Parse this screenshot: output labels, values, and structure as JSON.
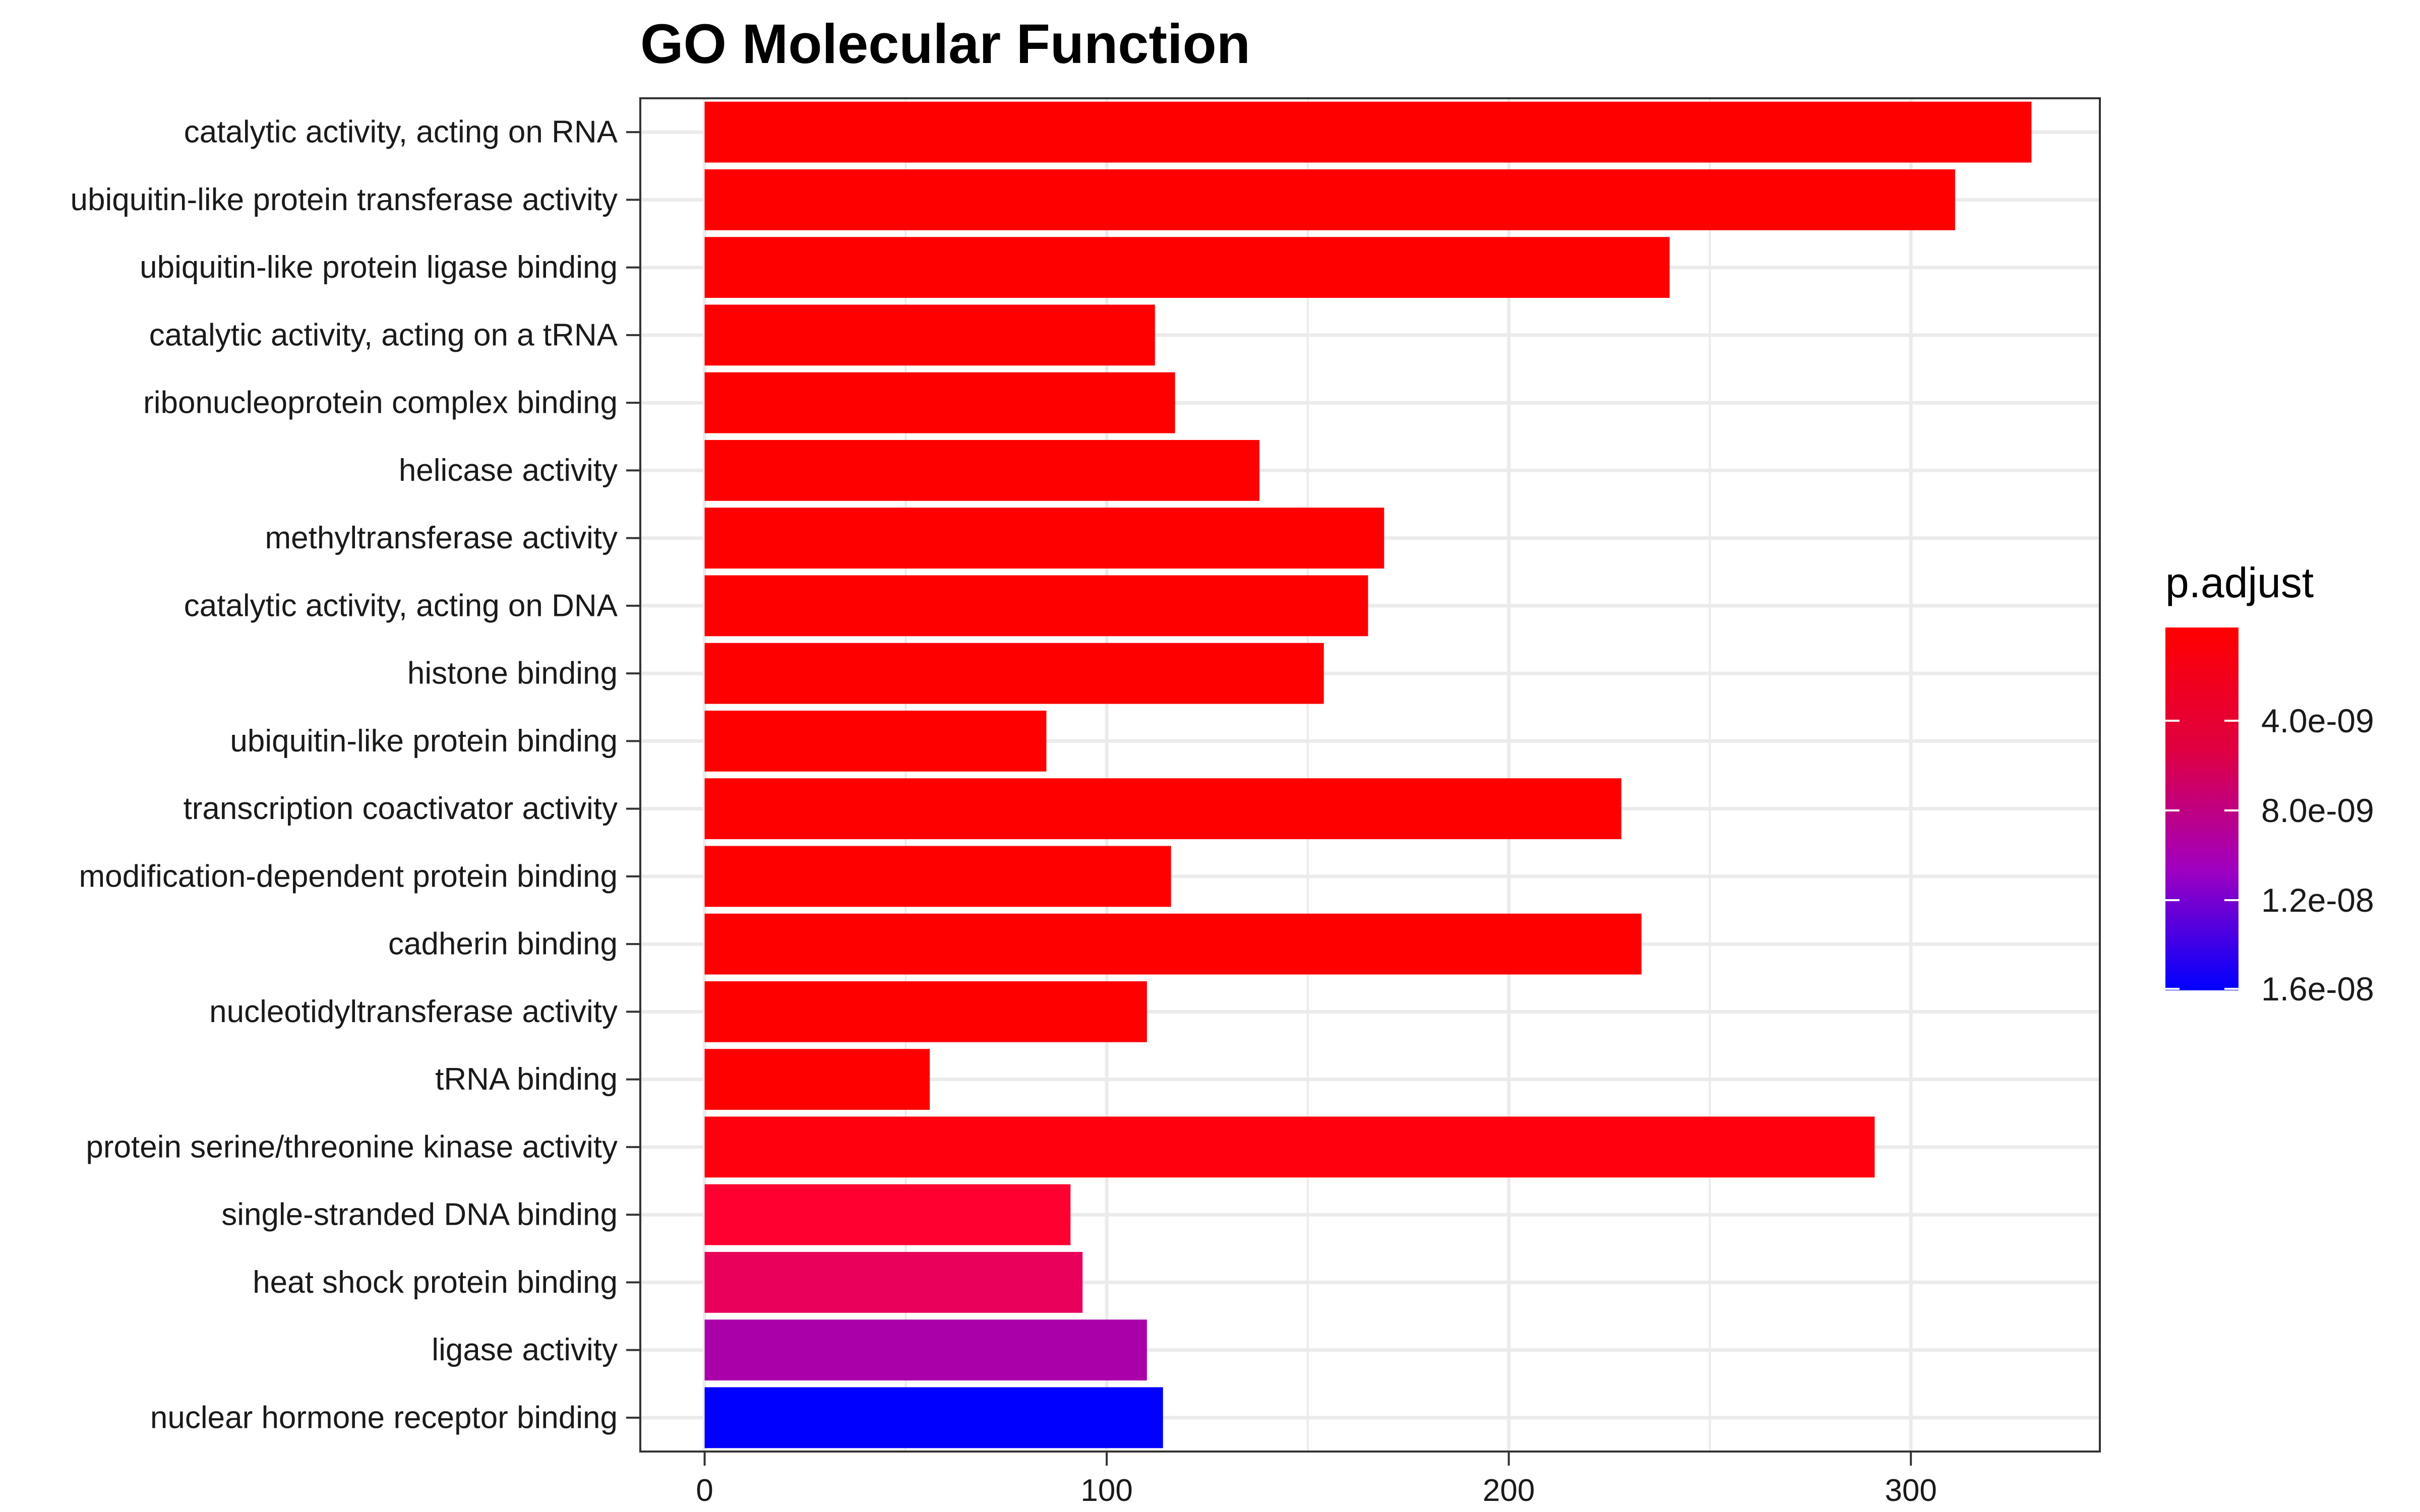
{
  "chart_data": {
    "type": "bar",
    "orientation": "horizontal",
    "title": "GO Molecular Function",
    "xlabel": "",
    "ylabel": "",
    "xlim": [
      -16,
      347
    ],
    "x_ticks": [
      0,
      100,
      200,
      300
    ],
    "grid": true,
    "categories": [
      "catalytic activity, acting on RNA",
      "ubiquitin-like protein transferase activity",
      "ubiquitin-like protein ligase binding",
      "catalytic activity, acting on a tRNA",
      "ribonucleoprotein complex binding",
      "helicase activity",
      "methyltransferase activity",
      "catalytic activity, acting on DNA",
      "histone binding",
      "ubiquitin-like protein binding",
      "transcription coactivator activity",
      "modification-dependent protein binding",
      "cadherin binding",
      "nucleotidyltransferase activity",
      "tRNA binding",
      "protein serine/threonine kinase activity",
      "single-stranded DNA binding",
      "heat shock protein binding",
      "ligase activity",
      "nuclear hormone receptor binding"
    ],
    "values": [
      330,
      311,
      240,
      112,
      117,
      138,
      169,
      165,
      154,
      85,
      228,
      116,
      233,
      110,
      56,
      291,
      91,
      94,
      110,
      114
    ],
    "bar_colors": [
      "#ff0000",
      "#ff0000",
      "#ff0000",
      "#ff0000",
      "#ff0000",
      "#ff0000",
      "#ff0000",
      "#ff0000",
      "#ff0000",
      "#ff0000",
      "#ff0000",
      "#ff0000",
      "#ff0000",
      "#ff0000",
      "#ff0000",
      "#ff000e",
      "#ff0030",
      "#e8005a",
      "#aa00aa",
      "#0000ff"
    ],
    "legend": {
      "title": "p.adjust",
      "position": "right",
      "ticks": [
        "4.0e-09",
        "8.0e-09",
        "1.2e-08",
        "1.6e-08"
      ],
      "colors": [
        "#ff0000",
        "#e00040",
        "#a000c0",
        "#0000ff"
      ]
    }
  }
}
